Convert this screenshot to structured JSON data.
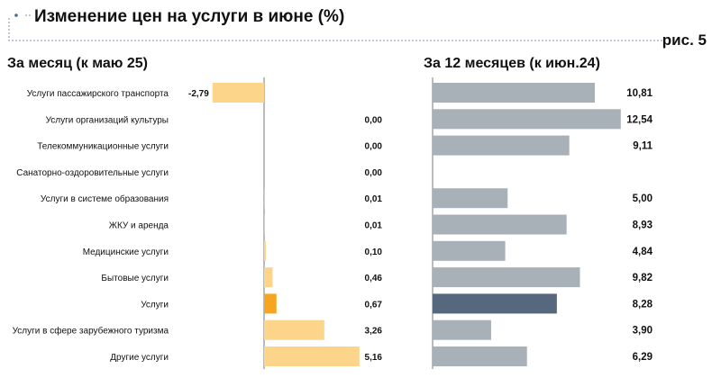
{
  "title": "Изменение цен на услуги в июне (%)",
  "figure_label": "рис. 5",
  "chart_data": [
    {
      "type": "bar",
      "orientation": "horizontal",
      "title": "За месяц (к маю 25)",
      "categories": [
        "Услуги пассажирского транспорта",
        "Услуги организаций культуры",
        "Телекоммуникационные услуги",
        "Санаторно-оздоровительные услуги",
        "Услуги в системе образования",
        "ЖКУ и аренда",
        "Медицинские услуги",
        "Бытовые услуги",
        "Услуги",
        "Услуги в сфере зарубежного туризма",
        "Другие услуги"
      ],
      "values": [
        -2.79,
        0.0,
        0.0,
        0.0,
        0.01,
        0.01,
        0.1,
        0.46,
        0.67,
        3.26,
        5.16
      ],
      "value_labels": [
        "-2,79",
        "0,00",
        "0,00",
        "0,00",
        "0,01",
        "0,01",
        "0,10",
        "0,46",
        "0,67",
        "3,26",
        "5,16"
      ],
      "xlim": [
        -3.5,
        5.5
      ],
      "colors": {
        "bar": "#FDD58A",
        "highlight": "#F7A51E"
      },
      "highlight_index": 8
    },
    {
      "type": "bar",
      "orientation": "horizontal",
      "title": "За 12 месяцев (к июн.24)",
      "categories": [
        "Услуги пассажирского транспорта",
        "Услуги организаций культуры",
        "Телекоммуникационные услуги",
        "Санаторно-оздоровительные услуги",
        "Услуги в системе образования",
        "ЖКУ и аренда",
        "Медицинские услуги",
        "Бытовые услуги",
        "Услуги",
        "Услуги в сфере зарубежного туризма",
        "Другие услуги"
      ],
      "values": [
        10.81,
        12.54,
        9.11,
        null,
        5.0,
        8.93,
        4.84,
        9.82,
        8.28,
        3.9,
        6.29
      ],
      "value_labels": [
        "10,81",
        "12,54",
        "9,11",
        "",
        "5,00",
        "8,93",
        "4,84",
        "9,82",
        "8,28",
        "3,90",
        "6,29"
      ],
      "xlim": [
        0,
        12.6
      ],
      "colors": {
        "bar": "#A8B0B8",
        "highlight": "#56687E"
      },
      "highlight_index": 8
    }
  ]
}
